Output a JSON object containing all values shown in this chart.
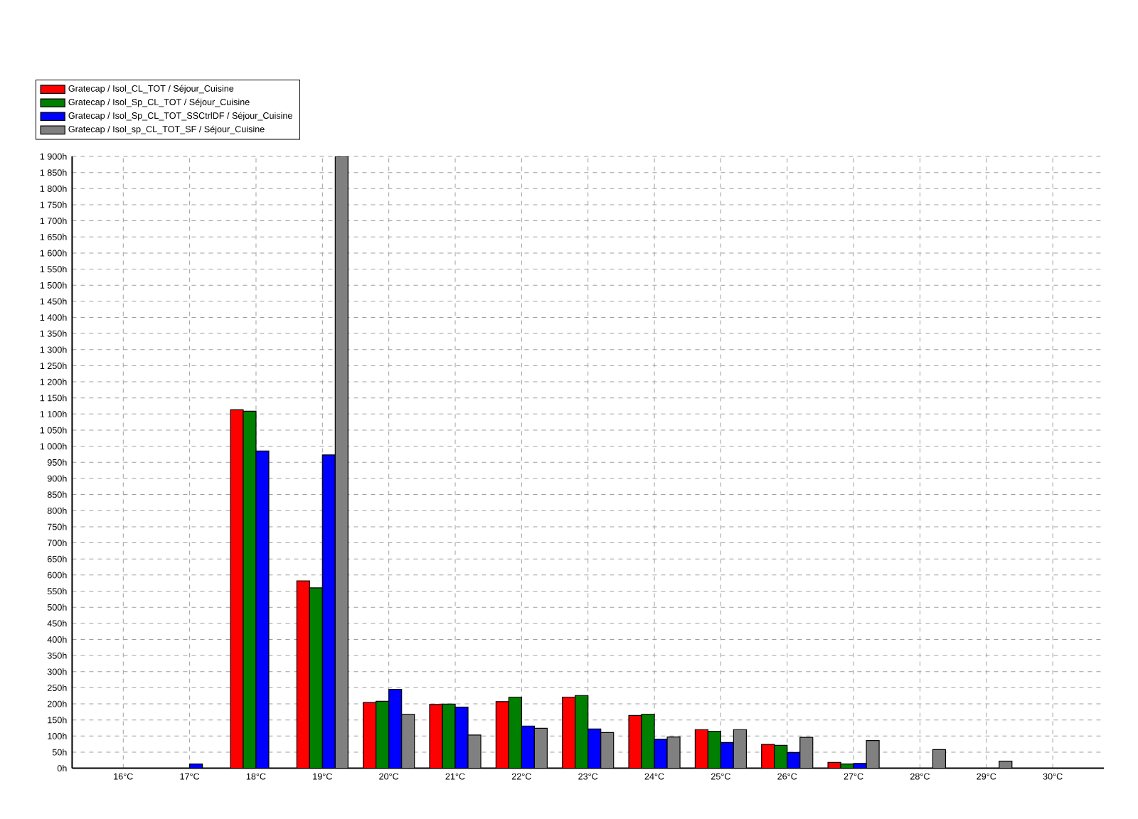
{
  "chart_data": {
    "type": "bar",
    "categories": [
      "16°C",
      "17°C",
      "18°C",
      "19°C",
      "20°C",
      "21°C",
      "22°C",
      "23°C",
      "24°C",
      "25°C",
      "26°C",
      "27°C",
      "28°C",
      "29°C",
      "30°C"
    ],
    "series": [
      {
        "name": "Gratecap / Isol_CL_TOT / Séjour_Cuisine",
        "color": "#ff0000",
        "values": [
          null,
          null,
          1113,
          582,
          204,
          198,
          207,
          221,
          164,
          120,
          74,
          18,
          null,
          null,
          null
        ]
      },
      {
        "name": "Gratecap / Isol_Sp_CL_TOT / Séjour_Cuisine",
        "color": "#008000",
        "values": [
          null,
          null,
          1109,
          560,
          208,
          199,
          221,
          226,
          168,
          115,
          71,
          13,
          null,
          null,
          null
        ]
      },
      {
        "name": "Gratecap / Isol_Sp_CL_TOT_SSCtrlDF / Séjour_Cuisine",
        "color": "#0000ff",
        "values": [
          null,
          13,
          985,
          973,
          245,
          190,
          131,
          122,
          90,
          80,
          49,
          15,
          null,
          null,
          null
        ]
      },
      {
        "name": "Gratecap / Isol_sp_CL_TOT_SF / Séjour_Cuisine",
        "color": "#808080",
        "values": [
          null,
          null,
          null,
          1900,
          168,
          103,
          124,
          111,
          97,
          120,
          96,
          86,
          58,
          22,
          null
        ]
      }
    ],
    "ylim": [
      0,
      1900
    ],
    "yticks": [
      {
        "value": 0,
        "label": "0h"
      },
      {
        "value": 50,
        "label": "50h"
      },
      {
        "value": 100,
        "label": "100h"
      },
      {
        "value": 150,
        "label": "150h"
      },
      {
        "value": 200,
        "label": "200h"
      },
      {
        "value": 250,
        "label": "250h"
      },
      {
        "value": 300,
        "label": "300h"
      },
      {
        "value": 350,
        "label": "350h"
      },
      {
        "value": 400,
        "label": "400h"
      },
      {
        "value": 450,
        "label": "450h"
      },
      {
        "value": 500,
        "label": "500h"
      },
      {
        "value": 550,
        "label": "550h"
      },
      {
        "value": 600,
        "label": "600h"
      },
      {
        "value": 650,
        "label": "650h"
      },
      {
        "value": 700,
        "label": "700h"
      },
      {
        "value": 750,
        "label": "750h"
      },
      {
        "value": 800,
        "label": "800h"
      },
      {
        "value": 850,
        "label": "850h"
      },
      {
        "value": 900,
        "label": "900h"
      },
      {
        "value": 950,
        "label": "950h"
      },
      {
        "value": 1000,
        "label": "1 000h"
      },
      {
        "value": 1050,
        "label": "1 050h"
      },
      {
        "value": 1100,
        "label": "1 100h"
      },
      {
        "value": 1150,
        "label": "1 150h"
      },
      {
        "value": 1200,
        "label": "1 200h"
      },
      {
        "value": 1250,
        "label": "1 250h"
      },
      {
        "value": 1300,
        "label": "1 300h"
      },
      {
        "value": 1350,
        "label": "1 350h"
      },
      {
        "value": 1400,
        "label": "1 400h"
      },
      {
        "value": 1450,
        "label": "1 450h"
      },
      {
        "value": 1500,
        "label": "1 500h"
      },
      {
        "value": 1550,
        "label": "1 550h"
      },
      {
        "value": 1600,
        "label": "1 600h"
      },
      {
        "value": 1650,
        "label": "1 650h"
      },
      {
        "value": 1700,
        "label": "1 700h"
      },
      {
        "value": 1750,
        "label": "1 750h"
      },
      {
        "value": 1800,
        "label": "1 800h"
      },
      {
        "value": 1850,
        "label": "1 850h"
      },
      {
        "value": 1900,
        "label": "1 900h"
      }
    ],
    "grid": true,
    "legend": "top left"
  }
}
